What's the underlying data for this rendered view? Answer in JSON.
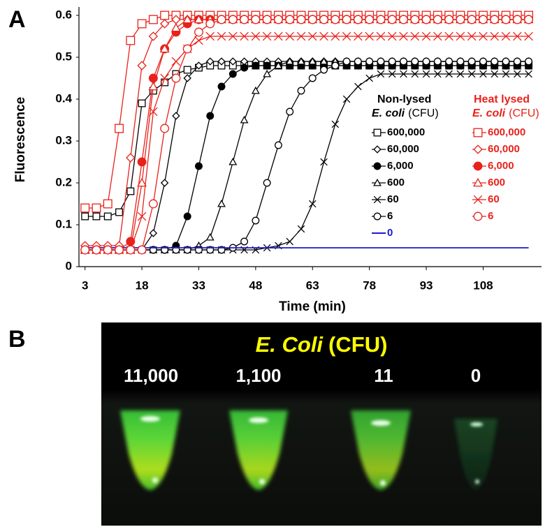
{
  "panel_labels": {
    "a": "A",
    "b": "B"
  },
  "chart_data": {
    "type": "line",
    "x_label": "Time (min)",
    "y_label": "Fluorescence",
    "xlim": [
      1.4,
      123.4
    ],
    "ylim": [
      0,
      0.62
    ],
    "xticks": [
      3,
      18,
      33,
      48,
      63,
      78,
      93,
      108
    ],
    "yticks": [
      0,
      0.1,
      0.2,
      0.3,
      0.4,
      0.5,
      0.6
    ],
    "grid": false,
    "x": [
      3,
      6,
      9,
      12,
      15,
      18,
      21,
      24,
      27,
      30,
      33,
      36,
      39,
      42,
      45,
      48,
      51,
      54,
      57,
      60,
      63,
      66,
      69,
      72,
      75,
      78,
      81,
      84,
      87,
      90,
      93,
      96,
      99,
      102,
      105,
      108,
      111,
      114,
      117,
      120
    ],
    "groups": [
      {
        "title": "Non-lysed",
        "subtitle_italic": "E. coli",
        "subtitle": "(CFU)",
        "color": "#000000",
        "series": [
          {
            "name": "600,000",
            "color": "#000000",
            "marker": "square",
            "values": [
              0.12,
              0.12,
              0.12,
              0.13,
              0.18,
              0.39,
              0.42,
              0.44,
              0.46,
              0.47,
              0.475,
              0.48,
              0.48,
              0.48,
              0.48,
              0.48,
              0.48,
              0.48,
              0.48,
              0.48,
              0.48,
              0.48,
              0.48,
              0.48,
              0.48,
              0.48,
              0.48,
              0.48,
              0.48,
              0.48,
              0.48,
              0.48,
              0.48,
              0.48,
              0.48,
              0.48,
              0.48,
              0.48,
              0.48,
              0.48
            ]
          },
          {
            "name": "60,000",
            "color": "#000000",
            "marker": "diamond",
            "values": [
              0.04,
              0.04,
              0.04,
              0.04,
              0.04,
              0.04,
              0.08,
              0.2,
              0.36,
              0.45,
              0.48,
              0.49,
              0.49,
              0.49,
              0.49,
              0.49,
              0.49,
              0.49,
              0.49,
              0.49,
              0.49,
              0.49,
              0.49,
              0.49,
              0.49,
              0.49,
              0.49,
              0.49,
              0.49,
              0.49,
              0.49,
              0.49,
              0.49,
              0.49,
              0.49,
              0.49,
              0.49,
              0.49,
              0.49,
              0.49
            ]
          },
          {
            "name": "6,000",
            "color": "#000000",
            "marker": "filled-circle",
            "values": [
              0.04,
              0.04,
              0.04,
              0.04,
              0.04,
              0.04,
              0.04,
              0.04,
              0.05,
              0.12,
              0.24,
              0.36,
              0.43,
              0.46,
              0.475,
              0.48,
              0.48,
              0.48,
              0.48,
              0.48,
              0.48,
              0.48,
              0.48,
              0.48,
              0.48,
              0.48,
              0.48,
              0.48,
              0.48,
              0.48,
              0.48,
              0.48,
              0.48,
              0.48,
              0.48,
              0.48,
              0.48,
              0.48,
              0.48,
              0.48
            ]
          },
          {
            "name": "600",
            "color": "#000000",
            "marker": "triangle",
            "values": [
              0.04,
              0.04,
              0.04,
              0.04,
              0.04,
              0.04,
              0.04,
              0.04,
              0.04,
              0.04,
              0.05,
              0.07,
              0.15,
              0.25,
              0.35,
              0.42,
              0.46,
              0.48,
              0.49,
              0.49,
              0.49,
              0.49,
              0.49,
              0.49,
              0.49,
              0.49,
              0.49,
              0.49,
              0.49,
              0.49,
              0.49,
              0.49,
              0.49,
              0.49,
              0.49,
              0.49,
              0.49,
              0.49,
              0.49,
              0.49
            ]
          },
          {
            "name": "60",
            "color": "#000000",
            "marker": "x",
            "values": [
              0.04,
              0.04,
              0.04,
              0.04,
              0.04,
              0.04,
              0.04,
              0.04,
              0.04,
              0.04,
              0.04,
              0.04,
              0.04,
              0.04,
              0.04,
              0.04,
              0.045,
              0.05,
              0.06,
              0.09,
              0.15,
              0.25,
              0.34,
              0.4,
              0.43,
              0.45,
              0.46,
              0.46,
              0.46,
              0.46,
              0.46,
              0.46,
              0.46,
              0.46,
              0.46,
              0.46,
              0.46,
              0.46,
              0.46,
              0.46
            ]
          },
          {
            "name": "6",
            "color": "#000000",
            "marker": "circle",
            "values": [
              0.04,
              0.04,
              0.04,
              0.04,
              0.04,
              0.04,
              0.04,
              0.04,
              0.04,
              0.04,
              0.04,
              0.04,
              0.04,
              0.045,
              0.06,
              0.11,
              0.2,
              0.29,
              0.37,
              0.42,
              0.45,
              0.47,
              0.48,
              0.49,
              0.49,
              0.49,
              0.49,
              0.49,
              0.49,
              0.49,
              0.49,
              0.49,
              0.49,
              0.49,
              0.49,
              0.49,
              0.49,
              0.49,
              0.49,
              0.49
            ]
          },
          {
            "name": "0",
            "color": "#1a1acc",
            "marker": "none",
            "values": [
              0.045,
              0.045,
              0.045,
              0.045,
              0.045,
              0.045,
              0.045,
              0.045,
              0.045,
              0.045,
              0.045,
              0.045,
              0.045,
              0.045,
              0.045,
              0.045,
              0.045,
              0.045,
              0.045,
              0.045,
              0.045,
              0.045,
              0.045,
              0.045,
              0.045,
              0.045,
              0.045,
              0.045,
              0.045,
              0.045,
              0.045,
              0.045,
              0.045,
              0.045,
              0.045,
              0.045,
              0.045,
              0.045,
              0.045,
              0.045
            ]
          }
        ]
      },
      {
        "title": "Heat lysed",
        "subtitle_italic": "E. coli",
        "subtitle": "(CFU)",
        "color": "#e8221b",
        "series": [
          {
            "name": "600,000",
            "color": "#e8221b",
            "marker": "square",
            "values": [
              0.14,
              0.14,
              0.15,
              0.33,
              0.54,
              0.58,
              0.59,
              0.6,
              0.6,
              0.6,
              0.6,
              0.6,
              0.6,
              0.6,
              0.6,
              0.6,
              0.6,
              0.6,
              0.6,
              0.6,
              0.6,
              0.6,
              0.6,
              0.6,
              0.6,
              0.6,
              0.6,
              0.6,
              0.6,
              0.6,
              0.6,
              0.6,
              0.6,
              0.6,
              0.6,
              0.6,
              0.6,
              0.6,
              0.6,
              0.6
            ]
          },
          {
            "name": "60,000",
            "color": "#e8221b",
            "marker": "diamond",
            "values": [
              0.05,
              0.05,
              0.05,
              0.05,
              0.26,
              0.48,
              0.55,
              0.58,
              0.59,
              0.59,
              0.59,
              0.59,
              0.59,
              0.59,
              0.59,
              0.59,
              0.59,
              0.59,
              0.59,
              0.59,
              0.59,
              0.59,
              0.59,
              0.59,
              0.59,
              0.59,
              0.59,
              0.59,
              0.59,
              0.59,
              0.59,
              0.59,
              0.59,
              0.59,
              0.59,
              0.59,
              0.59,
              0.59,
              0.59,
              0.59
            ]
          },
          {
            "name": "6,000",
            "color": "#e8221b",
            "marker": "filled-circle",
            "values": [
              0.04,
              0.04,
              0.04,
              0.04,
              0.06,
              0.25,
              0.45,
              0.52,
              0.56,
              0.58,
              0.59,
              0.59,
              0.59,
              0.59,
              0.59,
              0.59,
              0.59,
              0.59,
              0.59,
              0.59,
              0.59,
              0.59,
              0.59,
              0.59,
              0.59,
              0.59,
              0.59,
              0.59,
              0.59,
              0.59,
              0.59,
              0.59,
              0.59,
              0.59,
              0.59,
              0.59,
              0.59,
              0.59,
              0.59,
              0.59
            ]
          },
          {
            "name": "600",
            "color": "#e8221b",
            "marker": "triangle",
            "values": [
              0.04,
              0.04,
              0.04,
              0.04,
              0.04,
              0.2,
              0.43,
              0.52,
              0.57,
              0.59,
              0.59,
              0.59,
              0.59,
              0.59,
              0.59,
              0.59,
              0.59,
              0.59,
              0.59,
              0.59,
              0.59,
              0.59,
              0.59,
              0.59,
              0.59,
              0.59,
              0.59,
              0.59,
              0.59,
              0.59,
              0.59,
              0.59,
              0.59,
              0.59,
              0.59,
              0.59,
              0.59,
              0.59,
              0.59,
              0.59
            ]
          },
          {
            "name": "60",
            "color": "#e8221b",
            "marker": "x",
            "values": [
              0.04,
              0.04,
              0.04,
              0.04,
              0.04,
              0.12,
              0.37,
              0.45,
              0.49,
              0.52,
              0.54,
              0.55,
              0.55,
              0.55,
              0.55,
              0.55,
              0.55,
              0.55,
              0.55,
              0.55,
              0.55,
              0.55,
              0.55,
              0.55,
              0.55,
              0.55,
              0.55,
              0.55,
              0.55,
              0.55,
              0.55,
              0.55,
              0.55,
              0.55,
              0.55,
              0.55,
              0.55,
              0.55,
              0.55,
              0.55
            ]
          },
          {
            "name": "6",
            "color": "#e8221b",
            "marker": "circle",
            "values": [
              0.04,
              0.04,
              0.04,
              0.04,
              0.04,
              0.04,
              0.15,
              0.33,
              0.45,
              0.52,
              0.56,
              0.58,
              0.59,
              0.59,
              0.59,
              0.59,
              0.59,
              0.59,
              0.59,
              0.59,
              0.59,
              0.59,
              0.59,
              0.59,
              0.59,
              0.59,
              0.59,
              0.59,
              0.59,
              0.59,
              0.59,
              0.59,
              0.59,
              0.59,
              0.59,
              0.59,
              0.59,
              0.59,
              0.59,
              0.59
            ]
          }
        ]
      }
    ]
  },
  "photo": {
    "title_italic": "E. Coli",
    "title_rest": "(CFU)",
    "labels": [
      "11,000",
      "1,100",
      "11",
      "0"
    ]
  }
}
